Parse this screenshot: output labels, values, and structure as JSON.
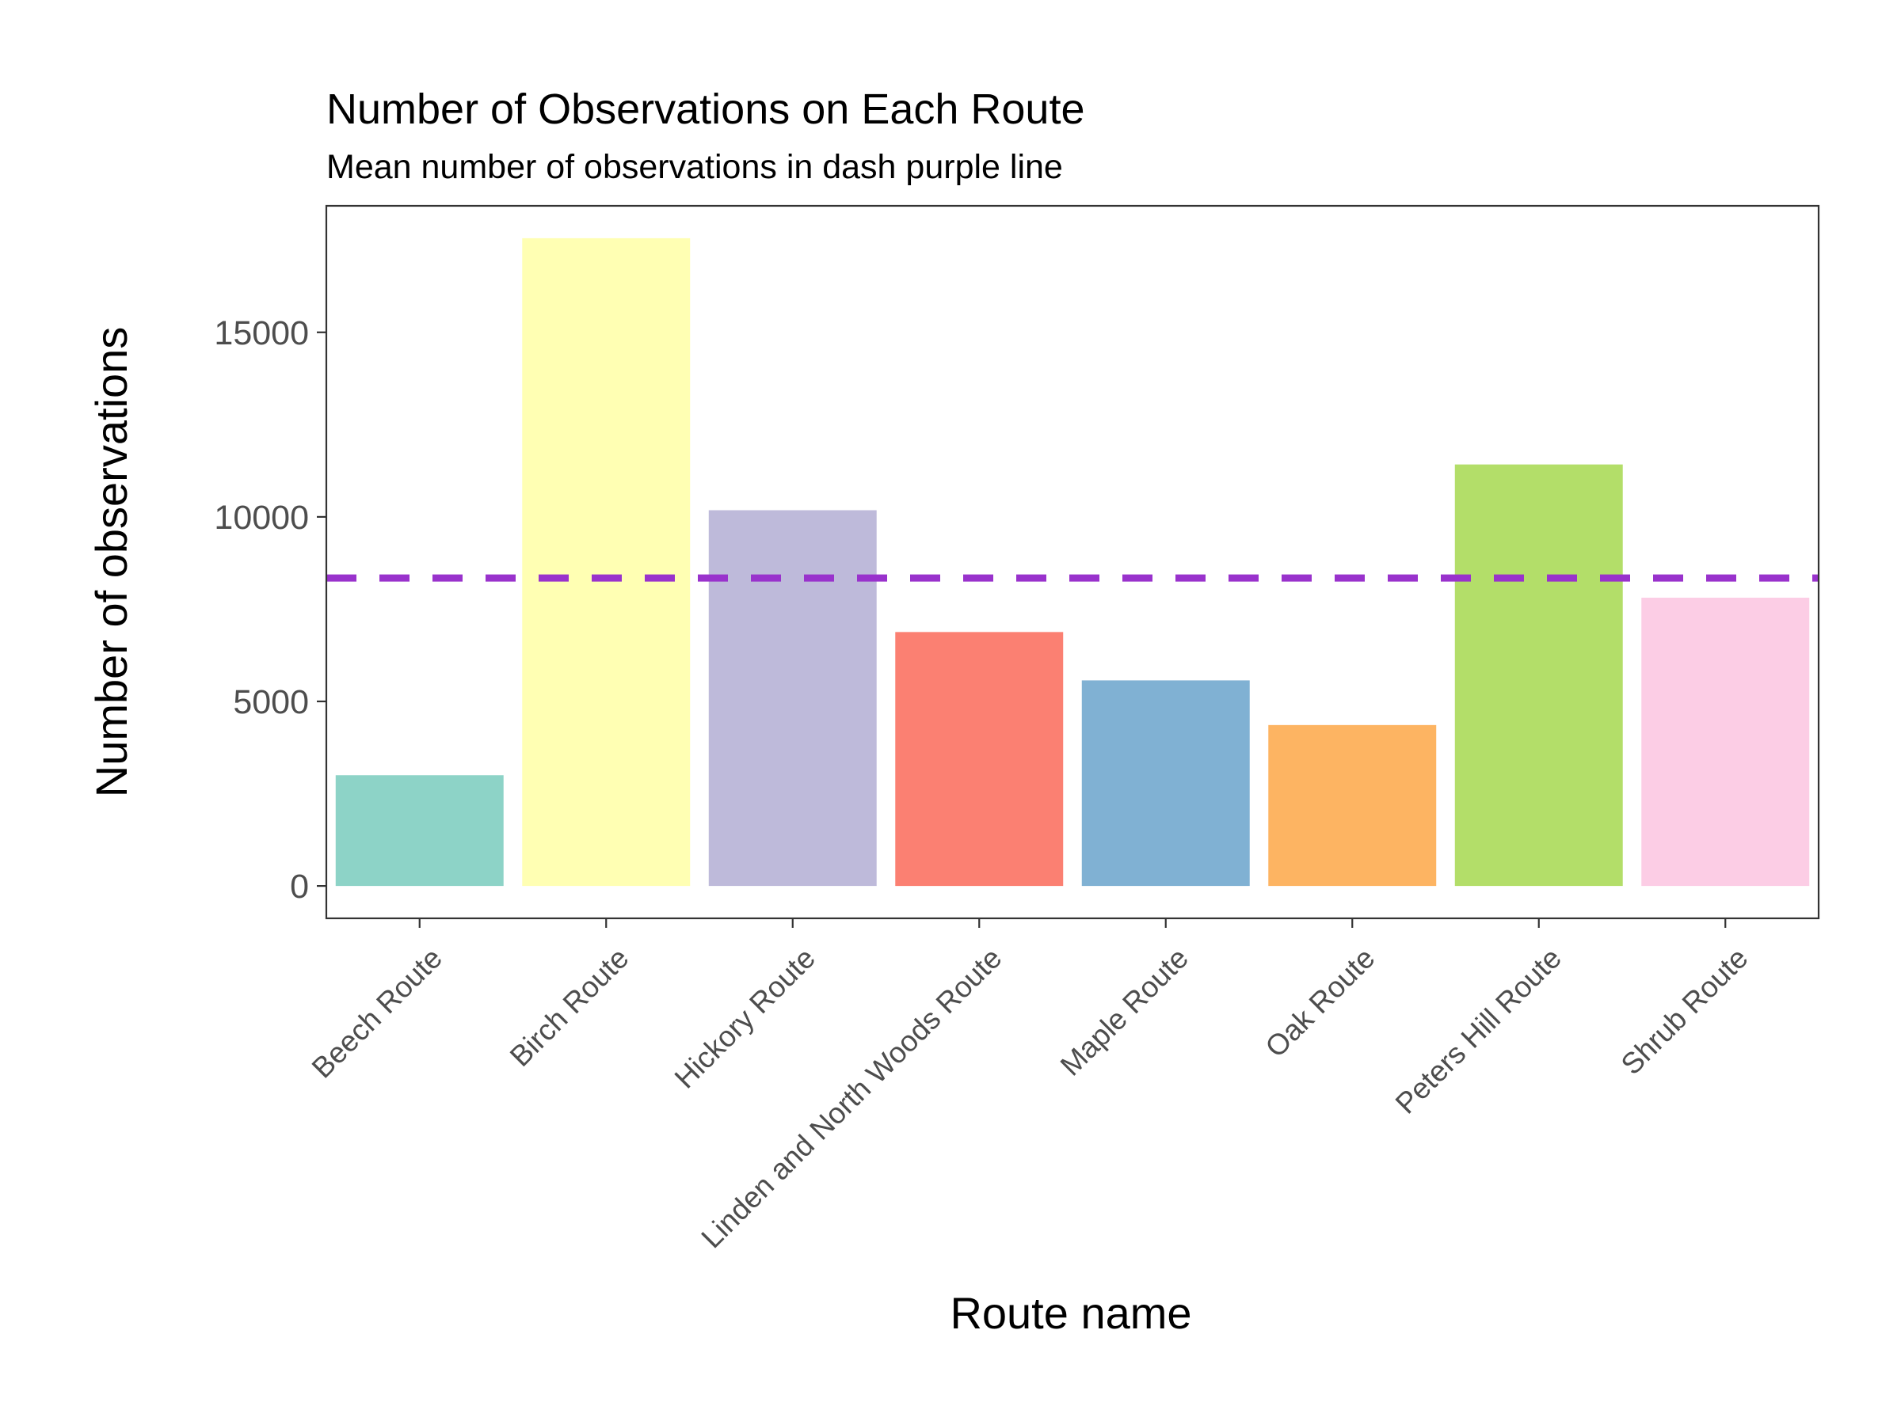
{
  "chart_data": {
    "type": "bar",
    "title": "Number of Observations on Each Route",
    "subtitle": "Mean number of observations in dash purple line",
    "xlabel": "Route name",
    "ylabel": "Number of observations",
    "categories": [
      "Beech Route",
      "Birch Route",
      "Hickory Route",
      "Linden and North Woods Route",
      "Maple Route",
      "Oak Route",
      "Peters Hill Route",
      "Shrub Route"
    ],
    "values": [
      3000,
      17550,
      10180,
      6880,
      5570,
      4360,
      11420,
      7810
    ],
    "colors": [
      "#8dd3c7",
      "#ffffb3",
      "#bebada",
      "#fb8072",
      "#80b1d3",
      "#fdb462",
      "#b3de69",
      "#fccde5"
    ],
    "yticks": [
      0,
      5000,
      10000,
      15000
    ],
    "ytick_labels": [
      "0",
      "5000",
      "10000",
      "15000"
    ],
    "ylim": [
      -877,
      18427
    ],
    "mean_line": {
      "value": 8344,
      "color": "#9932cc",
      "style": "dashed"
    },
    "grid": false,
    "legend": "none"
  }
}
